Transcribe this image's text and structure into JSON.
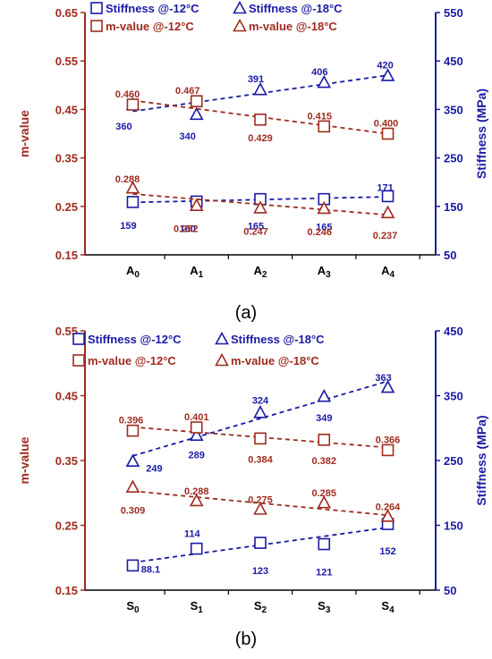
{
  "chart_data": [
    {
      "type": "line",
      "panel_label": "(a)",
      "categories": [
        {
          "base": "A",
          "sub": "0"
        },
        {
          "base": "A",
          "sub": "1"
        },
        {
          "base": "A",
          "sub": "2"
        },
        {
          "base": "A",
          "sub": "3"
        },
        {
          "base": "A",
          "sub": "4"
        }
      ],
      "ylabel_left": "m-value",
      "ylabel_right": "Stiffness (MPa)",
      "ylim_left": [
        0.15,
        0.65
      ],
      "yticks_left": [
        "0.15",
        "0.25",
        "0.35",
        "0.45",
        "0.55",
        "0.65"
      ],
      "ylim_right": [
        50,
        550
      ],
      "yticks_right": [
        "50",
        "150",
        "250",
        "350",
        "450",
        "550"
      ],
      "legend_position": "top",
      "series": [
        {
          "name": "Stiffness @-12°C",
          "axis": "right",
          "marker": "square",
          "color": "#1a1aa6",
          "values": [
            159,
            160,
            165,
            165,
            171
          ],
          "labels": [
            "159",
            "160",
            "165",
            "165",
            "171"
          ]
        },
        {
          "name": "Stiffness @-18°C",
          "axis": "right",
          "marker": "triangle",
          "color": "#1a1aa6",
          "values": [
            360,
            340,
            391,
            406,
            420
          ],
          "labels": [
            "360",
            "340",
            "391",
            "406",
            "420"
          ]
        },
        {
          "name": "m-value @-12°C",
          "axis": "left",
          "marker": "square",
          "color": "#9e2b1e",
          "values": [
            0.46,
            0.467,
            0.429,
            0.415,
            0.4
          ],
          "labels": [
            "0.460",
            "0.467",
            "0.429",
            "0.415",
            "0.400"
          ]
        },
        {
          "name": "m-value @-18°C",
          "axis": "left",
          "marker": "triangle",
          "color": "#9e2b1e",
          "values": [
            0.288,
            0.252,
            0.247,
            0.246,
            0.237
          ],
          "labels": [
            "0.288",
            "0.252",
            "0.247",
            "0.246",
            "0.237"
          ]
        }
      ]
    },
    {
      "type": "line",
      "panel_label": "(b)",
      "categories": [
        {
          "base": "S",
          "sub": "0"
        },
        {
          "base": "S",
          "sub": "1"
        },
        {
          "base": "S",
          "sub": "2"
        },
        {
          "base": "S",
          "sub": "3"
        },
        {
          "base": "S",
          "sub": "4"
        }
      ],
      "ylabel_left": "m-value",
      "ylabel_right": "Stiffness (MPa)",
      "ylim_left": [
        0.15,
        0.55
      ],
      "yticks_left": [
        "0.15",
        "0.25",
        "0.35",
        "0.45",
        "0.55"
      ],
      "ylim_right": [
        50,
        450
      ],
      "yticks_right": [
        "50",
        "150",
        "250",
        "350",
        "450"
      ],
      "legend_position": "top",
      "series": [
        {
          "name": "Stiffness @-12°C",
          "axis": "right",
          "marker": "square",
          "color": "#1a1aa6",
          "values": [
            88.1,
            114,
            123,
            121,
            152
          ],
          "labels": [
            "88.1",
            "114",
            "123",
            "121",
            "152"
          ]
        },
        {
          "name": "Stiffness @-18°C",
          "axis": "right",
          "marker": "triangle",
          "color": "#1a1aa6",
          "values": [
            249,
            289,
            324,
            349,
            363
          ],
          "labels": [
            "249",
            "289",
            "324",
            "349",
            "363"
          ]
        },
        {
          "name": "m-value @-12°C",
          "axis": "left",
          "marker": "square",
          "color": "#9e2b1e",
          "values": [
            0.396,
            0.401,
            0.384,
            0.382,
            0.366
          ],
          "labels": [
            "0.396",
            "0.401",
            "0.384",
            "0.382",
            "0.366"
          ]
        },
        {
          "name": "m-value @-18°C",
          "axis": "left",
          "marker": "triangle",
          "color": "#9e2b1e",
          "values": [
            0.309,
            0.288,
            0.275,
            0.285,
            0.264
          ],
          "labels": [
            "0.309",
            "0.288",
            "0.275",
            "0.285",
            "0.264"
          ]
        }
      ]
    }
  ]
}
